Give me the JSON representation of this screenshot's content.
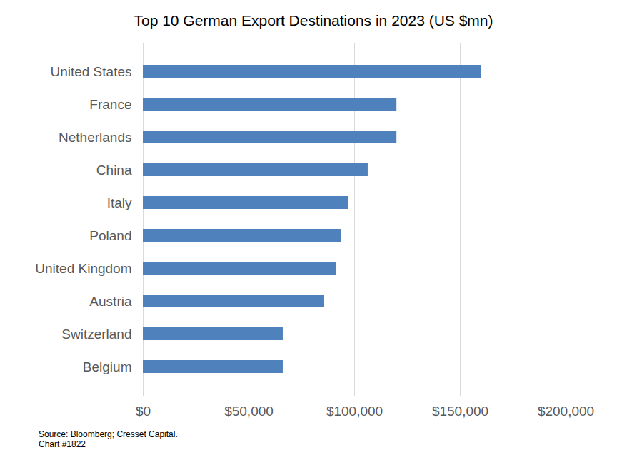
{
  "chart_data": {
    "type": "bar",
    "orientation": "horizontal",
    "title": "Top 10 German Export Destinations in 2023 (US $mn)",
    "categories": [
      "United States",
      "France",
      "Netherlands",
      "China",
      "Italy",
      "Poland",
      "United Kingdom",
      "Austria",
      "Switzerland",
      "Belgium"
    ],
    "values": [
      160000,
      120000,
      120000,
      106400,
      97000,
      93900,
      91500,
      85800,
      66200,
      66200
    ],
    "color": "#4f81bd",
    "xlim": [
      0,
      200000
    ],
    "xticks": [
      {
        "value": 0,
        "label": "$0"
      },
      {
        "value": 50000,
        "label": "$50,000"
      },
      {
        "value": 100000,
        "label": "$100,000"
      },
      {
        "value": 150000,
        "label": "$150,000"
      },
      {
        "value": 200000,
        "label": "$200,000"
      }
    ],
    "grid": true,
    "source": "Source: Bloomberg; Cresset Capital.",
    "chart_number": "Chart #1822"
  }
}
